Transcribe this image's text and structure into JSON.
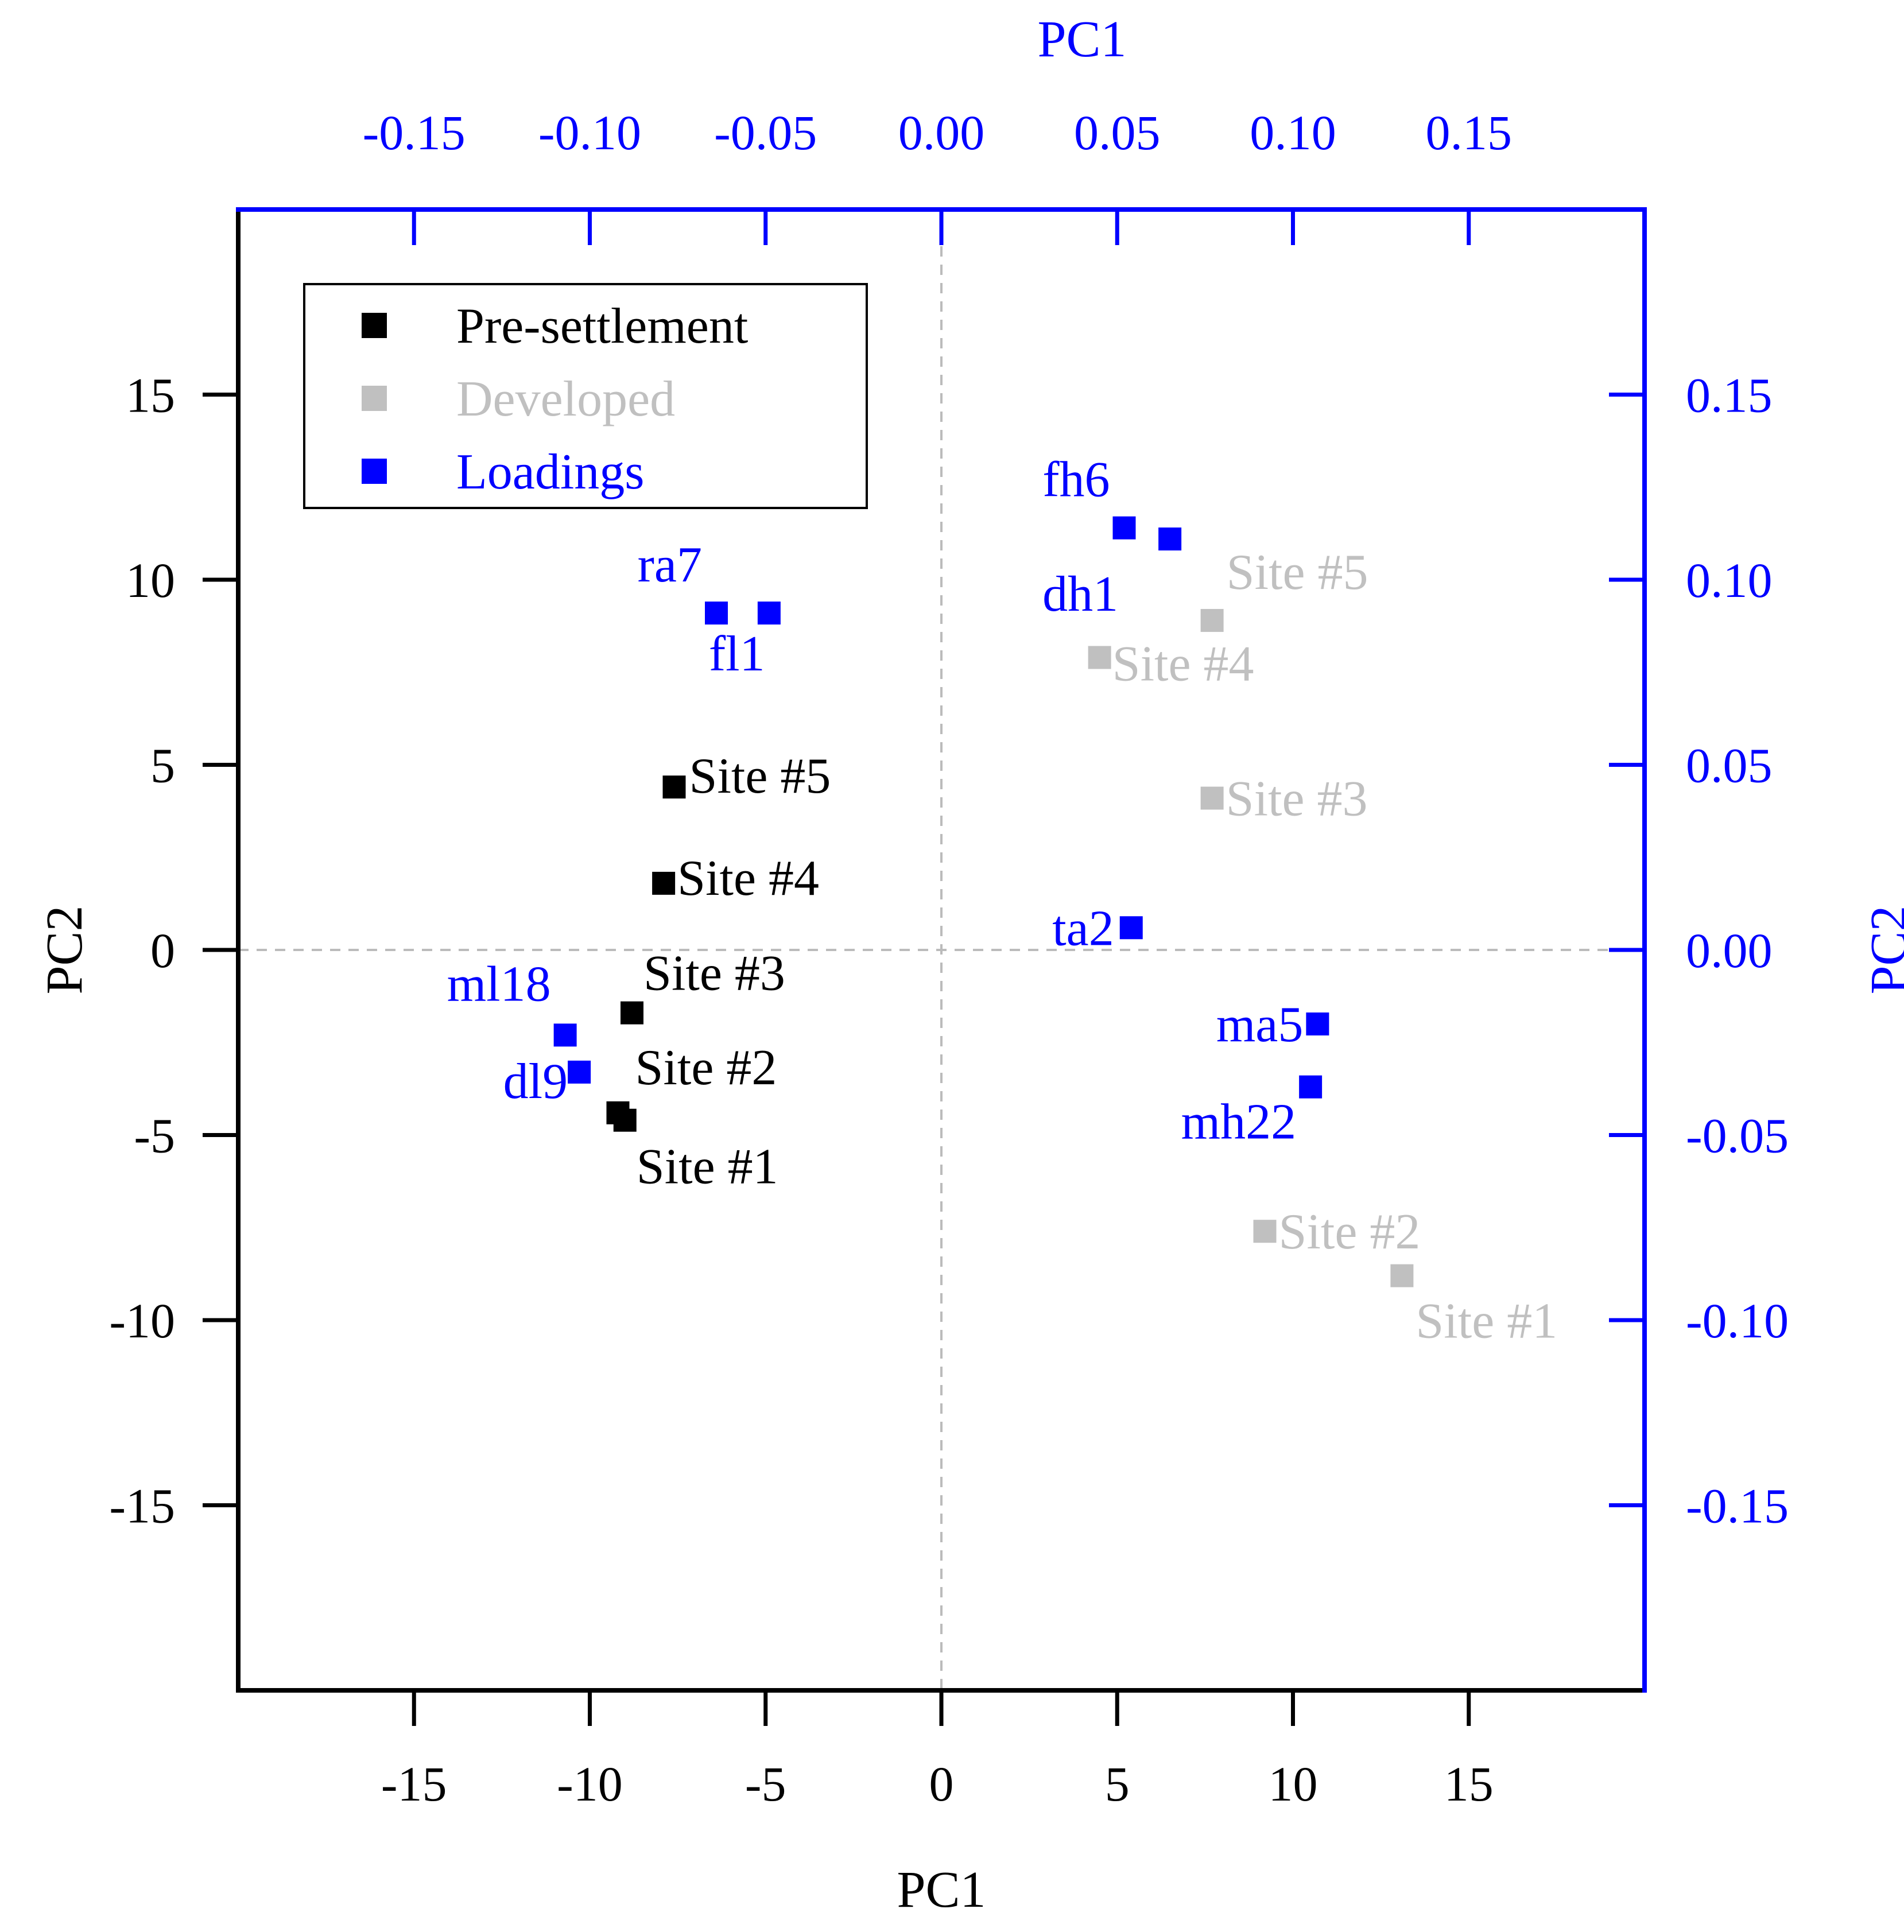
{
  "chart_data": {
    "type": "scatter",
    "title": "",
    "xlabel": "PC1",
    "ylabel": "PC2",
    "x2label": "PC1",
    "y2label": "PC2",
    "xlim": [
      -20,
      20
    ],
    "ylim": [
      -20,
      20
    ],
    "x2lim": [
      -0.2,
      0.2
    ],
    "y2lim": [
      -0.2,
      0.2
    ],
    "x_ticks": [
      -15,
      -10,
      -5,
      0,
      5,
      10,
      15
    ],
    "x_tick_labels": [
      "-15",
      "-10",
      "-5",
      "0",
      "5",
      "10",
      "15"
    ],
    "y_ticks": [
      -15,
      -10,
      -5,
      0,
      5,
      10,
      15
    ],
    "y_tick_labels": [
      "-15",
      "-10",
      "-5",
      "0",
      "5",
      "10",
      "15"
    ],
    "x2_ticks": [
      -0.15,
      -0.1,
      -0.05,
      0,
      0.05,
      0.1,
      0.15
    ],
    "x2_tick_labels": [
      "-0.15",
      "-0.10",
      "-0.05",
      "0.00",
      "0.05",
      "0.10",
      "0.15"
    ],
    "y2_ticks": [
      -0.15,
      -0.1,
      -0.05,
      0,
      0.05,
      0.1,
      0.15
    ],
    "y2_tick_labels": [
      "-0.15",
      "-0.10",
      "-0.05",
      "0.00",
      "0.05",
      "0.10",
      "0.15"
    ],
    "grid": false,
    "zero_lines": true,
    "legend_position": "top-left",
    "legend": [
      {
        "label": "Pre-settlement",
        "color": "#000000"
      },
      {
        "label": "Developed",
        "color": "#c0c0c0"
      },
      {
        "label": "Loadings",
        "color": "#0000ff"
      }
    ],
    "series": [
      {
        "name": "Pre-settlement",
        "color": "#000000",
        "axes": "primary",
        "points": [
          {
            "label": "Site #1",
            "x": -9.0,
            "y": -4.6
          },
          {
            "label": "Site #2",
            "x": -9.2,
            "y": -4.4
          },
          {
            "label": "Site #3",
            "x": -8.8,
            "y": -1.7
          },
          {
            "label": "Site #4",
            "x": -7.9,
            "y": 1.8
          },
          {
            "label": "Site #5",
            "x": -7.6,
            "y": 4.4
          }
        ]
      },
      {
        "name": "Developed",
        "color": "#c0c0c0",
        "axes": "primary",
        "points": [
          {
            "label": "Site #1",
            "x": 13.1,
            "y": -8.8
          },
          {
            "label": "Site #2",
            "x": 9.2,
            "y": -7.6
          },
          {
            "label": "Site #3",
            "x": 7.7,
            "y": 4.1
          },
          {
            "label": "Site #4",
            "x": 4.5,
            "y": 7.9
          },
          {
            "label": "Site #5",
            "x": 7.7,
            "y": 8.9
          }
        ]
      },
      {
        "name": "Loadings",
        "color": "#0000ff",
        "axes": "secondary",
        "points": [
          {
            "label": "fh6",
            "x": 0.052,
            "y": 0.114
          },
          {
            "label": "dh1",
            "x": 0.065,
            "y": 0.111
          },
          {
            "label": "ra7",
            "x": -0.064,
            "y": 0.091
          },
          {
            "label": "fl1",
            "x": -0.049,
            "y": 0.091
          },
          {
            "label": "ta2",
            "x": 0.054,
            "y": 0.006
          },
          {
            "label": "ml18",
            "x": -0.107,
            "y": -0.023
          },
          {
            "label": "dl9",
            "x": -0.103,
            "y": -0.033
          },
          {
            "label": "ma5",
            "x": 0.107,
            "y": -0.02
          },
          {
            "label": "mh22",
            "x": 0.105,
            "y": -0.037
          }
        ]
      }
    ]
  }
}
